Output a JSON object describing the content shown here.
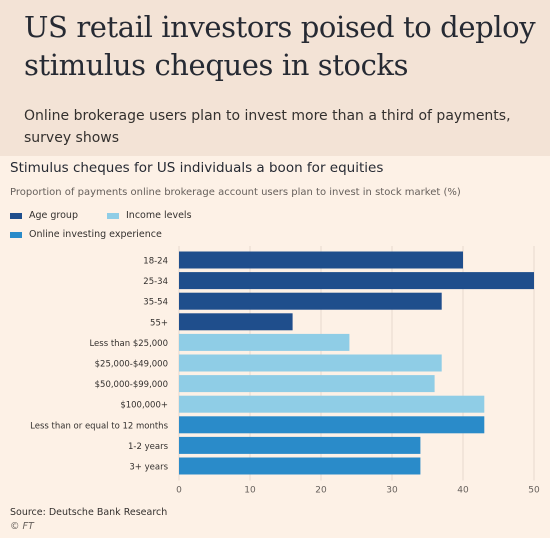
{
  "headline": "US retail investors poised to deploy stimulus cheques in stocks",
  "standfirst": "Online brokerage users plan to invest more than a third of payments, survey shows",
  "source": "Source: Deutsche Bank Research",
  "credit": "© FT",
  "colors": {
    "background": "#fdf1e6",
    "header_band": "#f3e3d6",
    "age_group": "#1f4e8c",
    "income_levels": "#8fcde6",
    "online_experience": "#2a8bc9",
    "gridline": "#e6d9ce"
  },
  "chart_data": {
    "type": "bar",
    "orientation": "horizontal",
    "title": "Stimulus cheques for US individuals a boon for equities",
    "subtitle": "Proportion of payments online brokerage account users plan to invest in stock market (%)",
    "legend": [
      {
        "name": "Age group",
        "color": "#1f4e8c"
      },
      {
        "name": "Income levels",
        "color": "#8fcde6"
      },
      {
        "name": "Online investing experience",
        "color": "#2a8bc9"
      }
    ],
    "legend_position": "top-left",
    "categories": [
      "18-24",
      "25-34",
      "35-54",
      "55+",
      "Less than $25,000",
      "$25,000-$49,000",
      "$50,000-$99,000",
      "$100,000+",
      "Less than or equal to 12 months",
      "1-2 years",
      "3+ years"
    ],
    "values": [
      40,
      50,
      37,
      16,
      24,
      37,
      36,
      43,
      43,
      34,
      34
    ],
    "groups": [
      0,
      0,
      0,
      0,
      1,
      1,
      1,
      1,
      2,
      2,
      2
    ],
    "xlim": [
      0,
      50
    ],
    "xticks": [
      0,
      10,
      20,
      30,
      40,
      50
    ],
    "grid": true
  }
}
